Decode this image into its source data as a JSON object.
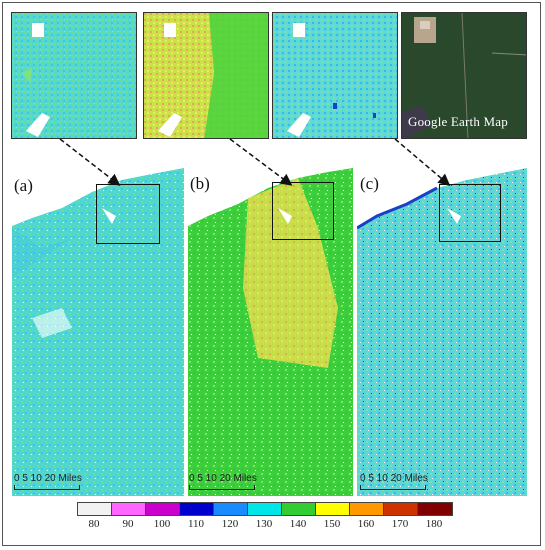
{
  "panels": [
    {
      "label": "(a)",
      "scale": {
        "ticks": "0  5 10     20 Miles"
      }
    },
    {
      "label": "(b)",
      "scale": {
        "ticks": "0  5 10     20 Miles"
      }
    },
    {
      "label": "(c)",
      "scale": {
        "ticks": "0  5 10     20 Miles"
      }
    }
  ],
  "insets": {
    "google_caption": "Google Earth Map"
  },
  "legend": {
    "labels": [
      "80",
      "90",
      "100",
      "110",
      "120",
      "130",
      "140",
      "150",
      "160",
      "170",
      "180"
    ],
    "colors": [
      "#f2f2f2",
      "#ff66ff",
      "#cc00cc",
      "#0000cc",
      "#1a8cff",
      "#00e6e6",
      "#33cc33",
      "#ffff00",
      "#ff9900",
      "#cc3300",
      "#800000"
    ]
  },
  "colors": {
    "panel_a_base": "#4fd6d0",
    "panel_b_base": "#3ccf3a",
    "panel_b_highlight": "#e6e84a",
    "panel_c_base": "#5ad7d6",
    "google_dark": "#1f3d22"
  }
}
